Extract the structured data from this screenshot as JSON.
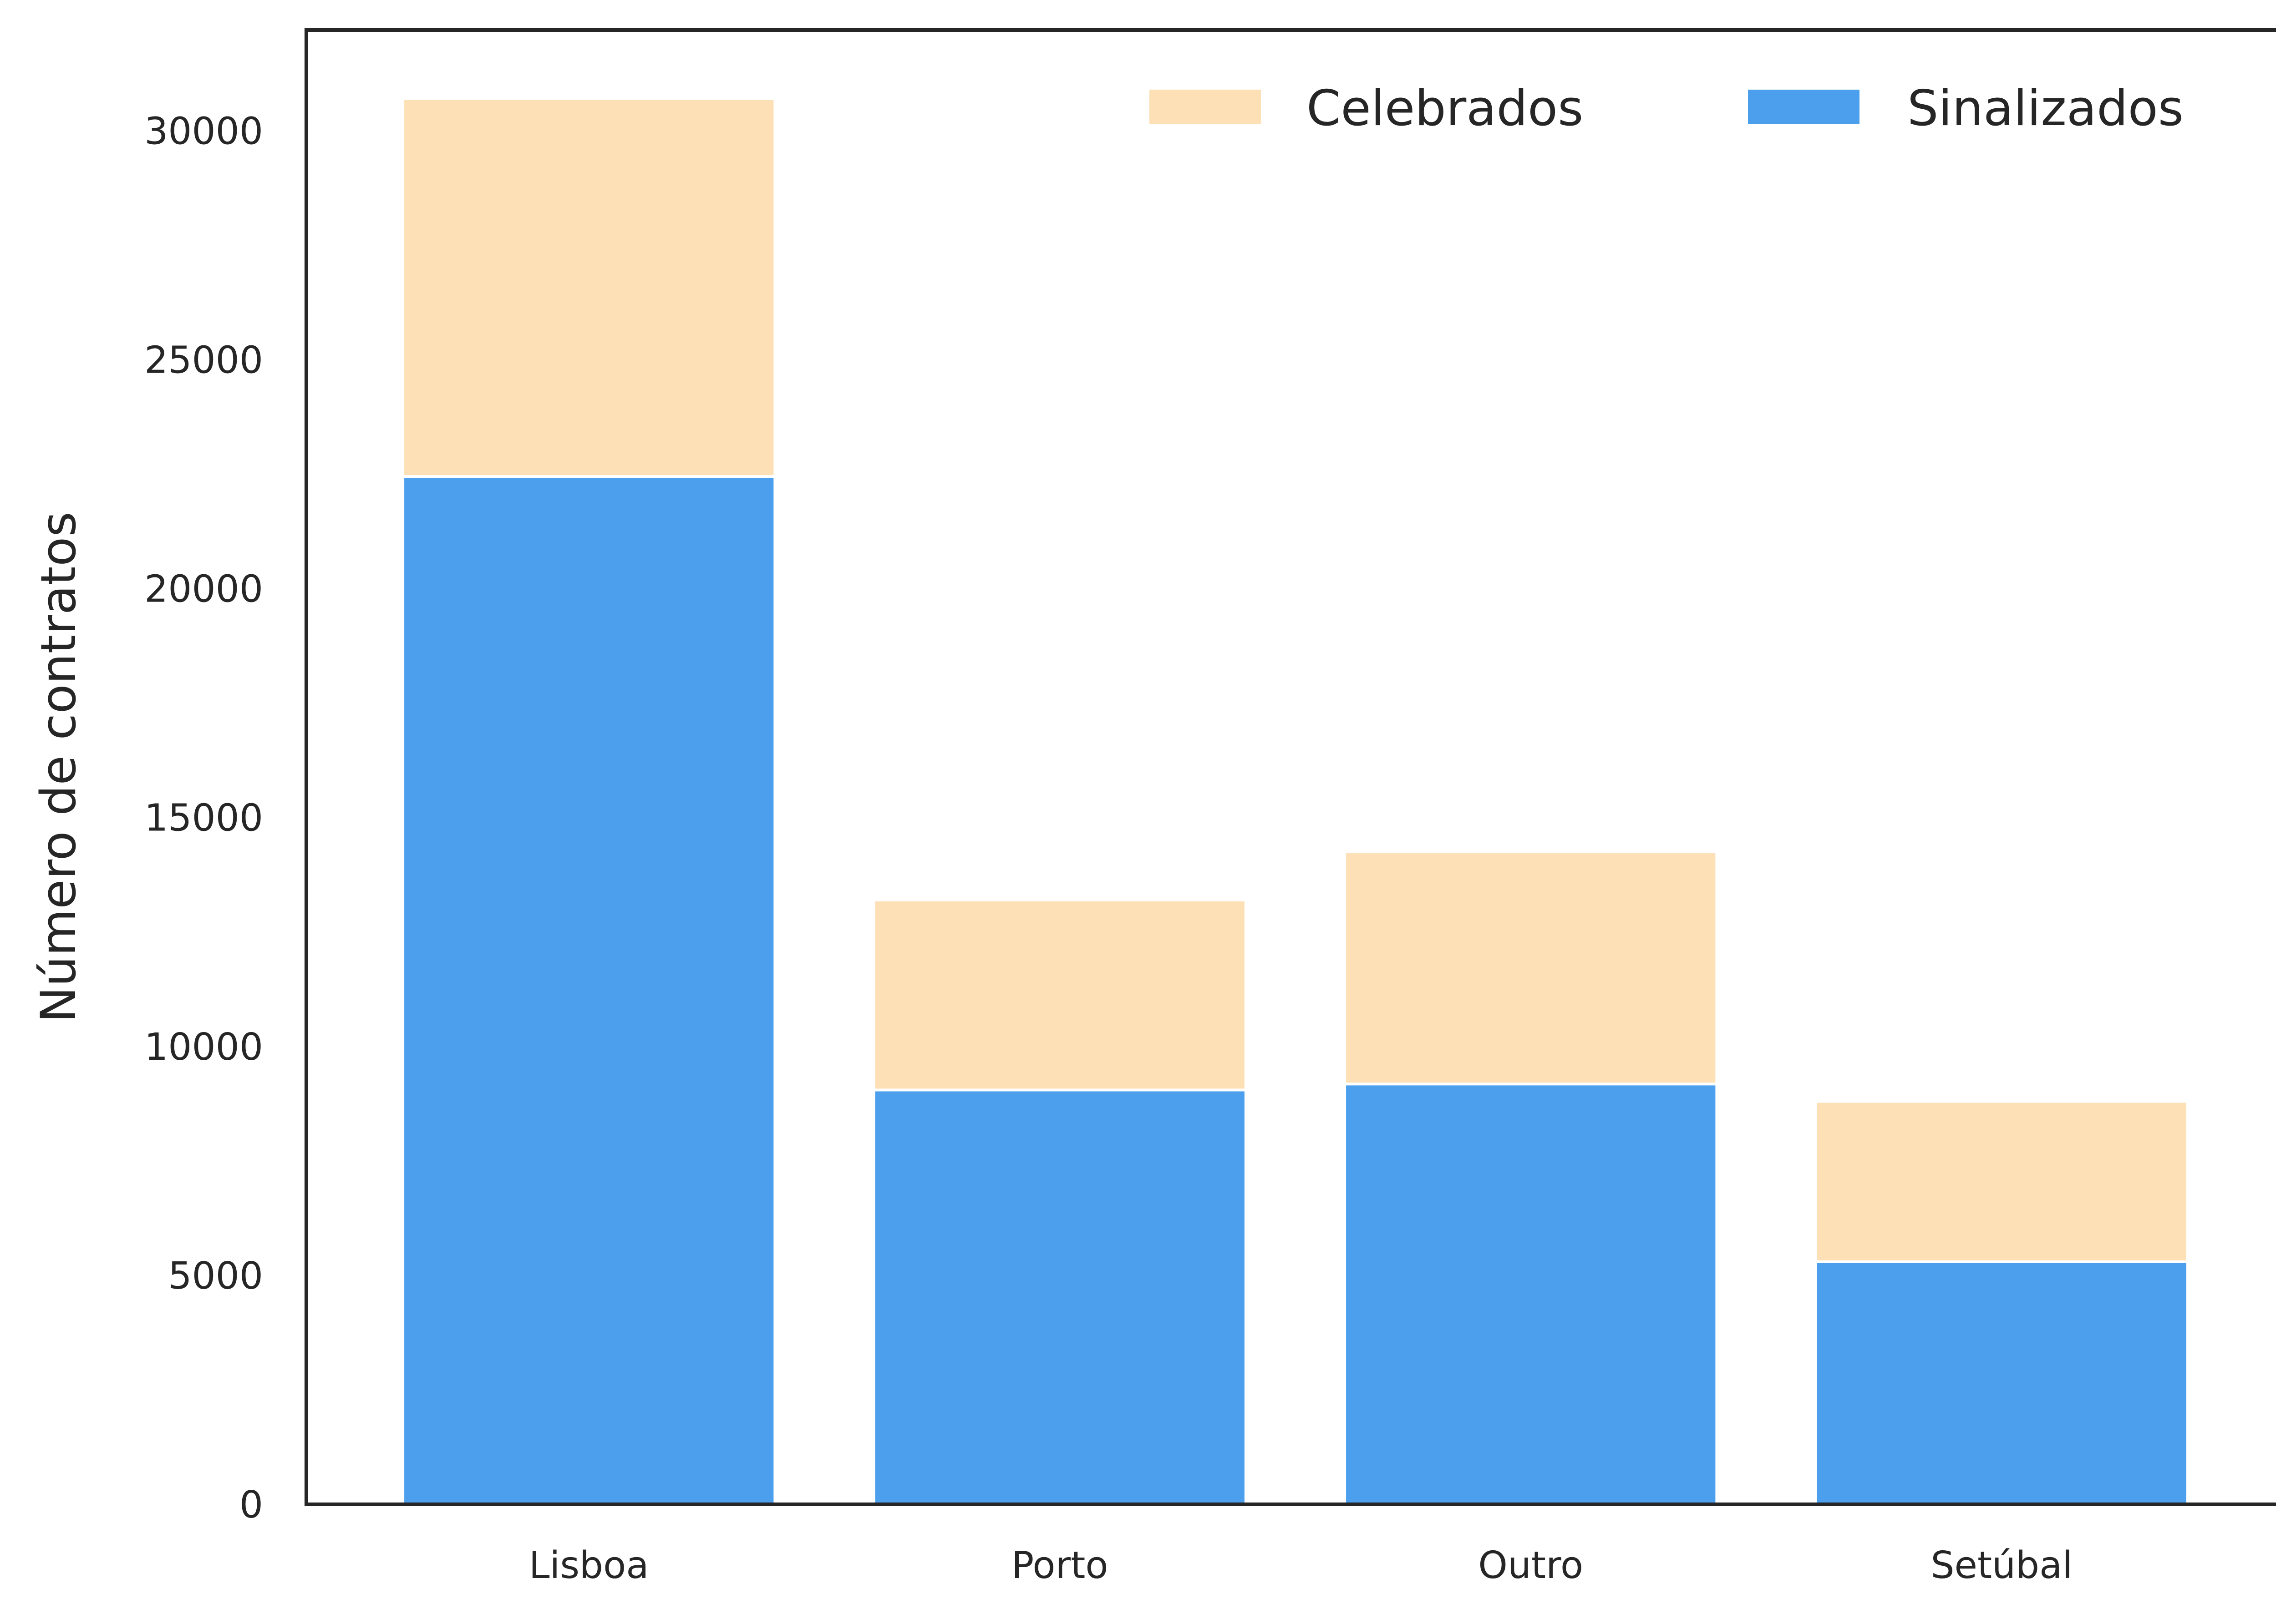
{
  "chart_data": {
    "type": "bar",
    "stacked": true,
    "categories": [
      "Lisboa",
      "Porto",
      "Outro",
      "Setúbal"
    ],
    "series": [
      {
        "name": "Sinalizados",
        "values": [
          22450,
          9050,
          9180,
          5300
        ],
        "color": "#4c9fed"
      },
      {
        "name": "Celebrados",
        "values": [
          8250,
          4150,
          5070,
          3500
        ],
        "color": "#fde0b5"
      }
    ],
    "legend_order": [
      "Celebrados",
      "Sinalizados"
    ],
    "legend_position": "top-right",
    "title": "",
    "xlabel": "",
    "ylabel": "Número de contratos",
    "ylim": [
      0,
      32200
    ],
    "yticks": [
      0,
      5000,
      10000,
      15000,
      20000,
      25000,
      30000
    ],
    "ytick_labels": [
      "0",
      "5000",
      "10000",
      "15000",
      "20000",
      "25000",
      "30000"
    ],
    "grid": false
  }
}
